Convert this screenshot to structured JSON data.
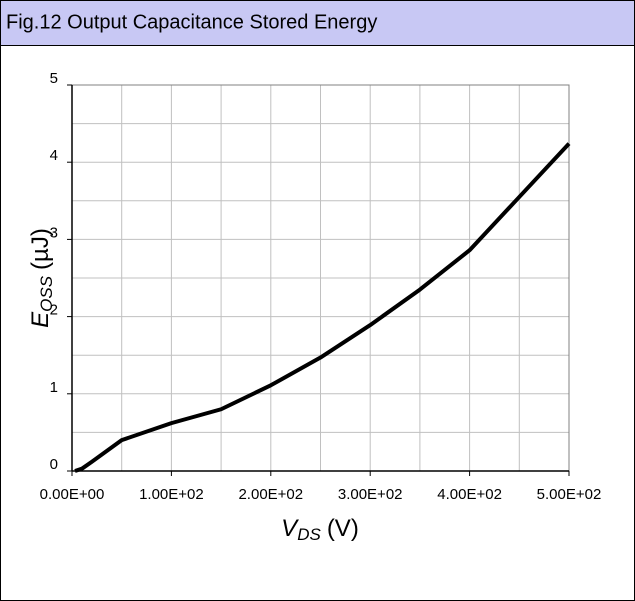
{
  "chart_data": {
    "type": "line",
    "title": "Fig.12 Output Capacitance Stored Energy",
    "xlabel": {
      "main": "V",
      "sub": "DS",
      "unit": "(V)"
    },
    "ylabel": {
      "main": "E",
      "sub": "OSS",
      "unit": "(µJ)"
    },
    "x": [
      3,
      10,
      20,
      50,
      100,
      150,
      200,
      250,
      300,
      350,
      400,
      450,
      500
    ],
    "series": [
      {
        "name": "Eoss",
        "color": "#000000",
        "values": [
          0,
          0.03,
          0.12,
          0.4,
          0.62,
          0.8,
          1.11,
          1.47,
          1.89,
          2.35,
          2.86,
          3.55,
          4.24
        ]
      }
    ],
    "xlim": [
      0,
      500
    ],
    "ylim": [
      0,
      5
    ],
    "xticks": [
      {
        "value": 0,
        "label": "0.00E+00"
      },
      {
        "value": 100,
        "label": "1.00E+02"
      },
      {
        "value": 200,
        "label": "2.00E+02"
      },
      {
        "value": 300,
        "label": "3.00E+02"
      },
      {
        "value": 400,
        "label": "4.00E+02"
      },
      {
        "value": 500,
        "label": "5.00E+02"
      }
    ],
    "yticks": [
      0,
      1,
      2,
      3,
      4,
      5
    ],
    "x_grid": [
      0,
      50,
      100,
      150,
      200,
      250,
      300,
      350,
      400,
      450,
      500
    ],
    "y_grid": [
      0,
      0.5,
      1,
      1.5,
      2,
      2.5,
      3,
      3.5,
      4,
      4.5,
      5
    ],
    "grid": true
  }
}
